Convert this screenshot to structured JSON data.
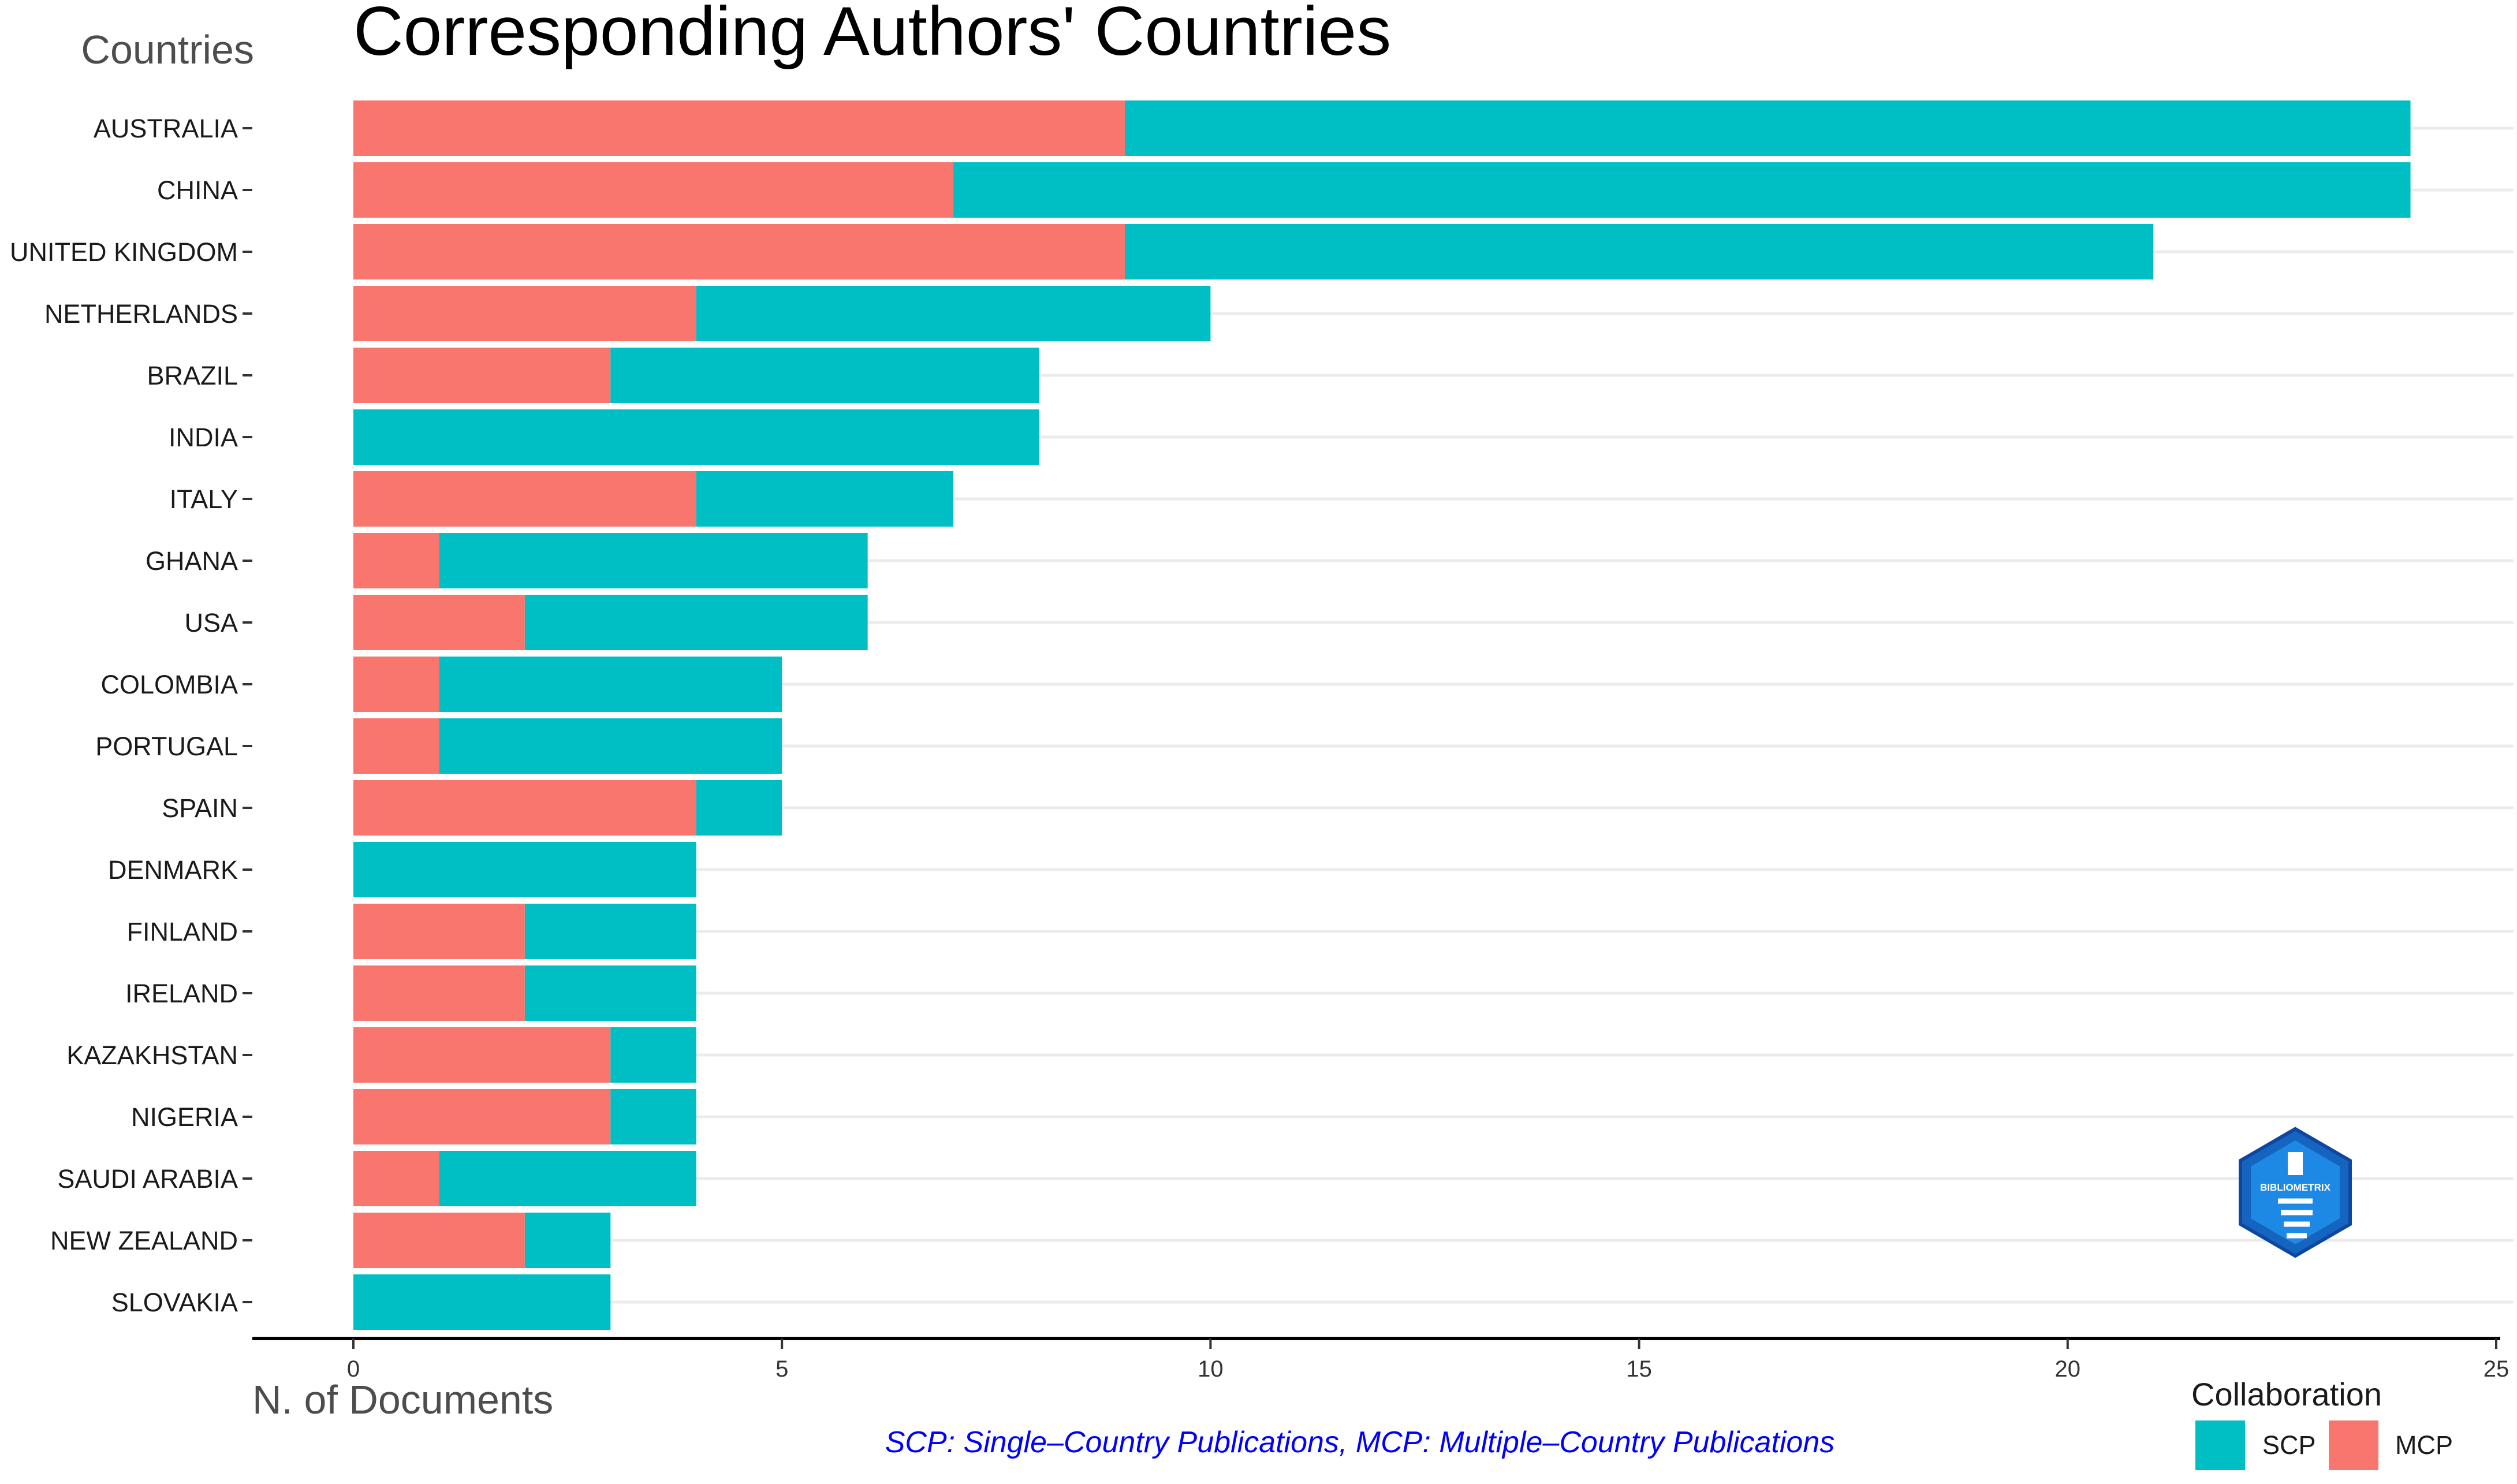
{
  "chart_data": {
    "type": "bar",
    "orientation": "horizontal",
    "stacked": true,
    "title": "Corresponding Authors' Countries",
    "ylabel": "Countries",
    "xlabel": "N. of Documents",
    "xlim": [
      0,
      25
    ],
    "xticks": [
      0,
      5,
      10,
      15,
      20,
      25
    ],
    "grid": true,
    "categories": [
      "AUSTRALIA",
      "CHINA",
      "UNITED KINGDOM",
      "NETHERLANDS",
      "BRAZIL",
      "INDIA",
      "ITALY",
      "GHANA",
      "USA",
      "COLOMBIA",
      "PORTUGAL",
      "SPAIN",
      "DENMARK",
      "FINLAND",
      "IRELAND",
      "KAZAKHSTAN",
      "NIGERIA",
      "SAUDI ARABIA",
      "NEW ZEALAND",
      "SLOVAKIA"
    ],
    "series": [
      {
        "name": "MCP",
        "color": "#F8766D",
        "values": [
          9,
          7,
          9,
          4,
          3,
          0,
          4,
          1,
          2,
          1,
          1,
          4,
          0,
          2,
          2,
          3,
          3,
          1,
          2,
          0
        ]
      },
      {
        "name": "SCP",
        "color": "#00BFC4",
        "values": [
          15,
          17,
          12,
          6,
          5,
          8,
          3,
          5,
          4,
          4,
          4,
          1,
          4,
          2,
          2,
          1,
          1,
          3,
          1,
          3
        ]
      }
    ],
    "legend": {
      "title": "Collaboration",
      "position": "bottom-right",
      "items": [
        {
          "label": "SCP",
          "color": "#00BFC4"
        },
        {
          "label": "MCP",
          "color": "#F8766D"
        }
      ]
    },
    "caption": "SCP: Single–Country Publications, MCP: Multiple–Country Publications"
  },
  "logo": {
    "text": "BIBLIOMETRIX",
    "color": "#1565C0"
  }
}
